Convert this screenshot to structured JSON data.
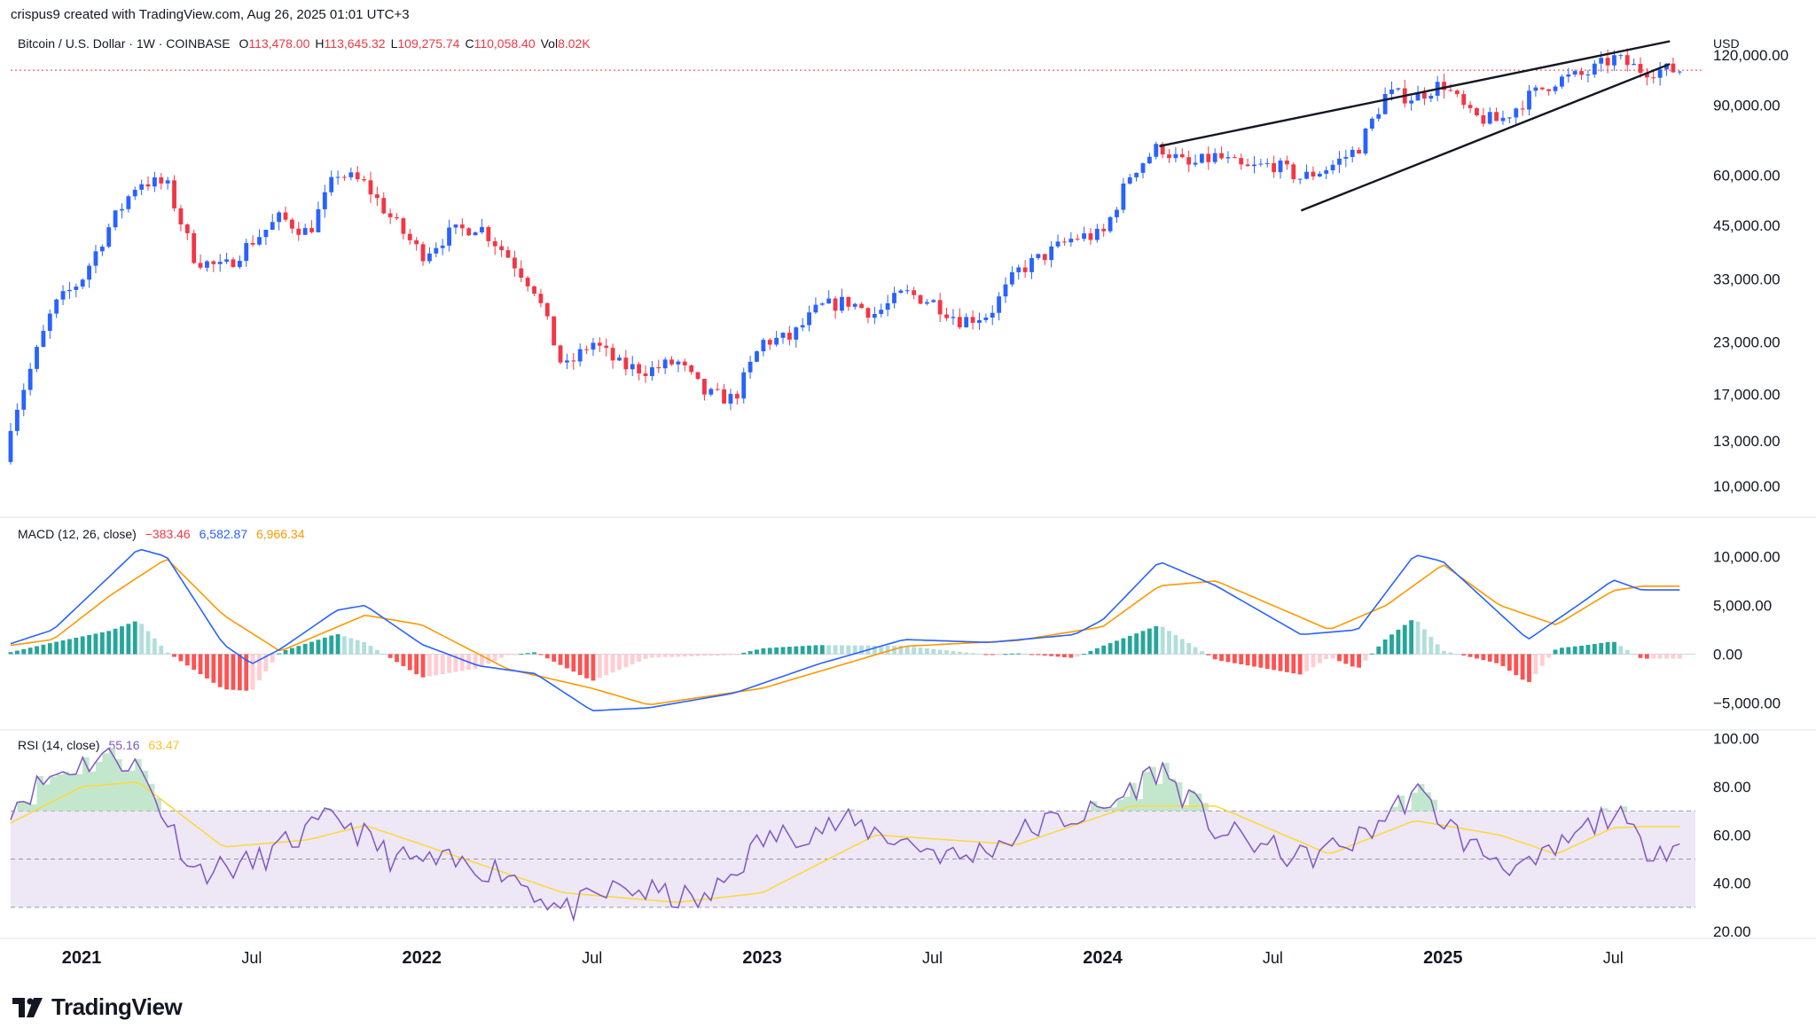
{
  "header": {
    "attribution": "crispus9 created with TradingView.com, Aug 26, 2025 01:01 UTC+3"
  },
  "price_pane": {
    "symbol": "Bitcoin / U.S. Dollar · 1W · COINBASE",
    "ohlc": [
      {
        "key": "O",
        "value": "113,478.00"
      },
      {
        "key": "H",
        "value": "113,645.32"
      },
      {
        "key": "L",
        "value": "109,275.74"
      },
      {
        "key": "C",
        "value": "110,058.40"
      },
      {
        "key": "Vol",
        "value": "8.02K"
      }
    ],
    "currency": "USD"
  },
  "macd_pane": {
    "title": "MACD (12, 26, close)",
    "hist_value": "−383.46",
    "macd_value": "6,582.87",
    "signal_value": "6,966.34"
  },
  "rsi_pane": {
    "title": "RSI (14, close)",
    "rsi_value": "55.16",
    "ma_value": "63.47"
  },
  "footer": {
    "brand": "TradingView"
  },
  "colors": {
    "up": "#2962ff",
    "down": "#f23645",
    "macd": "#2962ff",
    "signal": "#ff9800",
    "hist_pos": "#26a69a",
    "hist_pos_light": "#b2dfdb",
    "hist_neg": "#ff5252",
    "hist_neg_light": "#ffcdd2",
    "rsi": "#7e57c2",
    "rsi_ma": "#fdd835",
    "rsi_band": "#ede7f6"
  },
  "chart_data": [
    {
      "type": "candlestick",
      "title": "Bitcoin / U.S. Dollar · 1W · COINBASE",
      "scale": "log",
      "y_ticks": [
        "120,000.00",
        "90,000.00",
        "60,000.00",
        "45,000.00",
        "33,000.00",
        "23,000.00",
        "17,000.00",
        "13,000.00",
        "10,000.00"
      ],
      "y_tick_values": [
        120000,
        90000,
        60000,
        45000,
        33000,
        23000,
        17000,
        13000,
        10000
      ],
      "x_ticks": [
        "2021",
        "Jul",
        "2022",
        "Jul",
        "2023",
        "Jul",
        "2024",
        "Jul",
        "2025",
        "Jul"
      ],
      "x_tick_values": [
        "2021-01",
        "2021-07",
        "2022-01",
        "2022-07",
        "2023-01",
        "2023-07",
        "2024-01",
        "2024-07",
        "2025-01",
        "2025-07"
      ],
      "last_close": 110058.4,
      "close_path": [
        {
          "date": "2020-10",
          "close": 11500
        },
        {
          "date": "2020-11",
          "close": 18000
        },
        {
          "date": "2020-12",
          "close": 28000
        },
        {
          "date": "2021-01",
          "close": 33000
        },
        {
          "date": "2021-02",
          "close": 45000
        },
        {
          "date": "2021-03",
          "close": 58000
        },
        {
          "date": "2021-04",
          "close": 57000
        },
        {
          "date": "2021-05",
          "close": 37000
        },
        {
          "date": "2021-06",
          "close": 35000
        },
        {
          "date": "2021-07",
          "close": 41000
        },
        {
          "date": "2021-08",
          "close": 47000
        },
        {
          "date": "2021-09",
          "close": 43000
        },
        {
          "date": "2021-10",
          "close": 61000
        },
        {
          "date": "2021-11",
          "close": 57000
        },
        {
          "date": "2021-12",
          "close": 46000
        },
        {
          "date": "2022-01",
          "close": 38000
        },
        {
          "date": "2022-02",
          "close": 43000
        },
        {
          "date": "2022-03",
          "close": 45000
        },
        {
          "date": "2022-04",
          "close": 38000
        },
        {
          "date": "2022-05",
          "close": 31000
        },
        {
          "date": "2022-06",
          "close": 19500
        },
        {
          "date": "2022-07",
          "close": 23000
        },
        {
          "date": "2022-08",
          "close": 20000
        },
        {
          "date": "2022-09",
          "close": 19500
        },
        {
          "date": "2022-10",
          "close": 20500
        },
        {
          "date": "2022-11",
          "close": 17000
        },
        {
          "date": "2022-12",
          "close": 16500
        },
        {
          "date": "2023-01",
          "close": 23000
        },
        {
          "date": "2023-02",
          "close": 23500
        },
        {
          "date": "2023-03",
          "close": 28000
        },
        {
          "date": "2023-04",
          "close": 29000
        },
        {
          "date": "2023-05",
          "close": 27000
        },
        {
          "date": "2023-06",
          "close": 30500
        },
        {
          "date": "2023-07",
          "close": 29000
        },
        {
          "date": "2023-08",
          "close": 26000
        },
        {
          "date": "2023-09",
          "close": 27000
        },
        {
          "date": "2023-10",
          "close": 34500
        },
        {
          "date": "2023-11",
          "close": 38000
        },
        {
          "date": "2023-12",
          "close": 42000
        },
        {
          "date": "2024-01",
          "close": 42500
        },
        {
          "date": "2024-02",
          "close": 61000
        },
        {
          "date": "2024-03",
          "close": 71000
        },
        {
          "date": "2024-04",
          "close": 63000
        },
        {
          "date": "2024-05",
          "close": 67000
        },
        {
          "date": "2024-06",
          "close": 62000
        },
        {
          "date": "2024-07",
          "close": 64000
        },
        {
          "date": "2024-08",
          "close": 59000
        },
        {
          "date": "2024-09",
          "close": 63000
        },
        {
          "date": "2024-10",
          "close": 70000
        },
        {
          "date": "2024-11",
          "close": 96000
        },
        {
          "date": "2024-12",
          "close": 94000
        },
        {
          "date": "2025-01",
          "close": 102000
        },
        {
          "date": "2025-02",
          "close": 84000
        },
        {
          "date": "2025-03",
          "close": 82000
        },
        {
          "date": "2025-04",
          "close": 94000
        },
        {
          "date": "2025-05",
          "close": 104000
        },
        {
          "date": "2025-06",
          "close": 107000
        },
        {
          "date": "2025-07",
          "close": 118000
        },
        {
          "date": "2025-08",
          "close": 110058
        }
      ],
      "trendlines": [
        {
          "name": "upper",
          "from": {
            "date": "2024-03",
            "value": 71000
          },
          "to": {
            "date": "2025-09",
            "value": 130000
          }
        },
        {
          "name": "lower",
          "from": {
            "date": "2024-08",
            "value": 49000
          },
          "to": {
            "date": "2025-09",
            "value": 114000
          }
        }
      ]
    },
    {
      "type": "line",
      "title": "MACD (12, 26, close)",
      "y_ticks": [
        "10,000.00",
        "5,000.00",
        "0.00",
        "−5,000.00"
      ],
      "y_tick_values": [
        10000,
        5000,
        0,
        -5000
      ],
      "series": [
        {
          "name": "MACD",
          "values_by_month": [
            {
              "date": "2020-10",
              "value": 600
            },
            {
              "date": "2020-12",
              "value": 2500
            },
            {
              "date": "2021-02",
              "value": 8000
            },
            {
              "date": "2021-03",
              "value": 10800
            },
            {
              "date": "2021-04",
              "value": 10000
            },
            {
              "date": "2021-06",
              "value": 1000
            },
            {
              "date": "2021-07",
              "value": -1000
            },
            {
              "date": "2021-08",
              "value": 500
            },
            {
              "date": "2021-10",
              "value": 4500
            },
            {
              "date": "2021-11",
              "value": 5000
            },
            {
              "date": "2022-01",
              "value": 1000
            },
            {
              "date": "2022-03",
              "value": -1200
            },
            {
              "date": "2022-05",
              "value": -2000
            },
            {
              "date": "2022-07",
              "value": -5800
            },
            {
              "date": "2022-09",
              "value": -5500
            },
            {
              "date": "2022-12",
              "value": -4000
            },
            {
              "date": "2023-03",
              "value": -1000
            },
            {
              "date": "2023-06",
              "value": 1500
            },
            {
              "date": "2023-09",
              "value": 1200
            },
            {
              "date": "2023-12",
              "value": 2000
            },
            {
              "date": "2024-01",
              "value": 3500
            },
            {
              "date": "2024-03",
              "value": 9500
            },
            {
              "date": "2024-05",
              "value": 7000
            },
            {
              "date": "2024-08",
              "value": 2000
            },
            {
              "date": "2024-10",
              "value": 2500
            },
            {
              "date": "2024-12",
              "value": 10200
            },
            {
              "date": "2025-01",
              "value": 9500
            },
            {
              "date": "2025-04",
              "value": 1500
            },
            {
              "date": "2025-06",
              "value": 5500
            },
            {
              "date": "2025-07",
              "value": 7600
            },
            {
              "date": "2025-08",
              "value": 6583
            }
          ]
        },
        {
          "name": "Signal",
          "values_by_month": [
            {
              "date": "2020-10",
              "value": 700
            },
            {
              "date": "2020-12",
              "value": 1500
            },
            {
              "date": "2021-02",
              "value": 6000
            },
            {
              "date": "2021-04",
              "value": 9800
            },
            {
              "date": "2021-06",
              "value": 4000
            },
            {
              "date": "2021-08",
              "value": 300
            },
            {
              "date": "2021-11",
              "value": 4000
            },
            {
              "date": "2022-01",
              "value": 3000
            },
            {
              "date": "2022-04",
              "value": -1500
            },
            {
              "date": "2022-07",
              "value": -3500
            },
            {
              "date": "2022-09",
              "value": -5200
            },
            {
              "date": "2023-01",
              "value": -3500
            },
            {
              "date": "2023-06",
              "value": 800
            },
            {
              "date": "2023-10",
              "value": 1400
            },
            {
              "date": "2024-01",
              "value": 2800
            },
            {
              "date": "2024-03",
              "value": 7000
            },
            {
              "date": "2024-05",
              "value": 7500
            },
            {
              "date": "2024-09",
              "value": 2500
            },
            {
              "date": "2024-11",
              "value": 5000
            },
            {
              "date": "2025-01",
              "value": 9200
            },
            {
              "date": "2025-03",
              "value": 5000
            },
            {
              "date": "2025-05",
              "value": 3000
            },
            {
              "date": "2025-07",
              "value": 6500
            },
            {
              "date": "2025-08",
              "value": 6966
            }
          ]
        }
      ]
    },
    {
      "type": "line",
      "title": "RSI (14, close)",
      "y_ticks": [
        "100.00",
        "80.00",
        "60.00",
        "40.00",
        "20.00"
      ],
      "y_tick_values": [
        100,
        80,
        60,
        40,
        20
      ],
      "bands": [
        70,
        50,
        30
      ],
      "series": [
        {
          "name": "RSI",
          "values_by_month": [
            {
              "date": "2020-10",
              "value": 68
            },
            {
              "date": "2020-12",
              "value": 85
            },
            {
              "date": "2021-02",
              "value": 94
            },
            {
              "date": "2021-03",
              "value": 88
            },
            {
              "date": "2021-05",
              "value": 45
            },
            {
              "date": "2021-07",
              "value": 48
            },
            {
              "date": "2021-10",
              "value": 68
            },
            {
              "date": "2021-12",
              "value": 50
            },
            {
              "date": "2022-02",
              "value": 48
            },
            {
              "date": "2022-04",
              "value": 45
            },
            {
              "date": "2022-06",
              "value": 28
            },
            {
              "date": "2022-08",
              "value": 38
            },
            {
              "date": "2022-11",
              "value": 32
            },
            {
              "date": "2023-01",
              "value": 58
            },
            {
              "date": "2023-04",
              "value": 65
            },
            {
              "date": "2023-08",
              "value": 50
            },
            {
              "date": "2023-11",
              "value": 65
            },
            {
              "date": "2024-01",
              "value": 70
            },
            {
              "date": "2024-03",
              "value": 88
            },
            {
              "date": "2024-05",
              "value": 62
            },
            {
              "date": "2024-08",
              "value": 50
            },
            {
              "date": "2024-10",
              "value": 58
            },
            {
              "date": "2024-12",
              "value": 78
            },
            {
              "date": "2025-02",
              "value": 55
            },
            {
              "date": "2025-04",
              "value": 45
            },
            {
              "date": "2025-06",
              "value": 62
            },
            {
              "date": "2025-07",
              "value": 70
            },
            {
              "date": "2025-08",
              "value": 55.16
            }
          ]
        },
        {
          "name": "RSI-based MA",
          "values_by_month": [
            {
              "date": "2020-10",
              "value": 62
            },
            {
              "date": "2021-01",
              "value": 80
            },
            {
              "date": "2021-03",
              "value": 82
            },
            {
              "date": "2021-06",
              "value": 55
            },
            {
              "date": "2021-09",
              "value": 58
            },
            {
              "date": "2021-11",
              "value": 64
            },
            {
              "date": "2022-03",
              "value": 48
            },
            {
              "date": "2022-06",
              "value": 36
            },
            {
              "date": "2022-10",
              "value": 32
            },
            {
              "date": "2023-01",
              "value": 36
            },
            {
              "date": "2023-05",
              "value": 60
            },
            {
              "date": "2023-10",
              "value": 56
            },
            {
              "date": "2024-02",
              "value": 72
            },
            {
              "date": "2024-05",
              "value": 72
            },
            {
              "date": "2024-09",
              "value": 52
            },
            {
              "date": "2024-12",
              "value": 66
            },
            {
              "date": "2025-03",
              "value": 60
            },
            {
              "date": "2025-05",
              "value": 52
            },
            {
              "date": "2025-07",
              "value": 63
            },
            {
              "date": "2025-08",
              "value": 63.47
            }
          ]
        }
      ]
    }
  ]
}
